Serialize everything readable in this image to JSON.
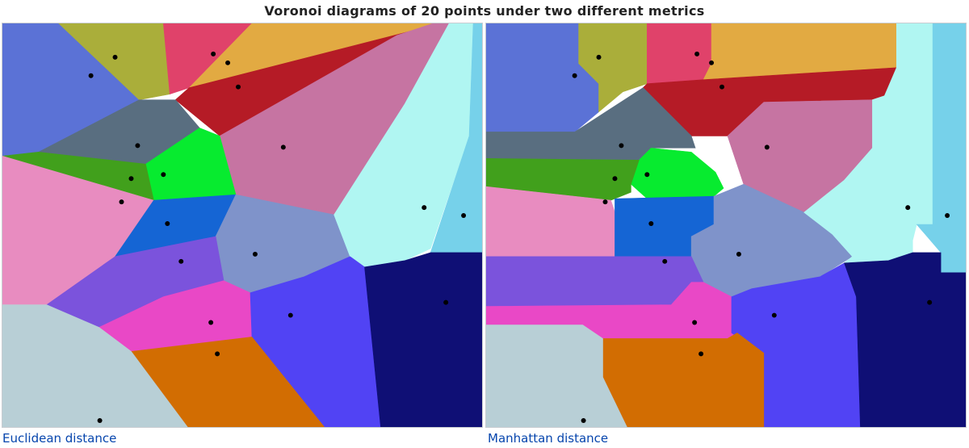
{
  "title": "Voronoi diagrams of 20 points under two different metrics",
  "panels": [
    {
      "id": "euclidean",
      "caption": "Euclidean distance"
    },
    {
      "id": "manhattan",
      "caption": "Manhattan distance"
    }
  ],
  "region_colors": [
    "#5b72d6",
    "#aaae3a",
    "#e0426a",
    "#e2aa42",
    "#b51b26",
    "#c674a2",
    "#596e80",
    "#07eb2f",
    "#41a01c",
    "#e88cc0",
    "#1565d4",
    "#7f93ca",
    "#b0f6f2",
    "#76d1ea",
    "#7b53dc",
    "#e948c6",
    "#5143f4",
    "#0f0f75",
    "#d26d02",
    "#b8cfd6"
  ],
  "site_color": "#000000"
}
